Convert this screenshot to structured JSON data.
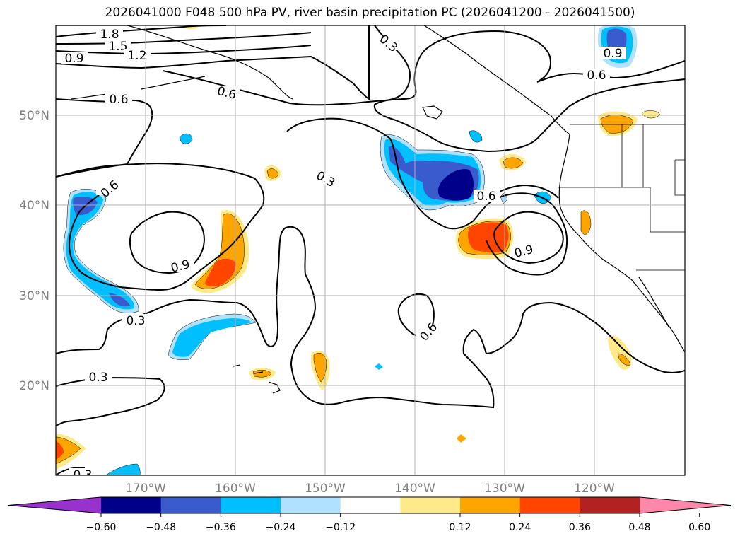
{
  "title": "2026041000 F048 500 hPa PV, river basin precipitation PC (2026041200 - 2026041500)",
  "map": {
    "projection": "PlateCarree",
    "lon_range": [
      -180,
      -110
    ],
    "lat_range": [
      10,
      60
    ],
    "lat_ticks": [
      "20°N",
      "30°N",
      "40°N",
      "50°N"
    ],
    "lon_ticks": [
      "170°W",
      "160°W",
      "150°W",
      "140°W",
      "130°W",
      "120°W"
    ],
    "grid": true
  },
  "pv_contour_labels": [
    "1.8",
    "1.5",
    "1.2",
    "0.9",
    "0.6",
    "0.6",
    "0.3",
    "0.6",
    "0.9",
    "0.3",
    "0.6",
    "0.9",
    "0.6",
    "0.3",
    "0.6",
    "0.3",
    "0.3",
    "0.9",
    "0.6"
  ],
  "colorbar": {
    "ticks": [
      "−0.60",
      "−0.48",
      "−0.36",
      "−0.24",
      "−0.12",
      "0.12",
      "0.24",
      "0.36",
      "0.48",
      "0.60"
    ],
    "colors": [
      "#9932cc",
      "#00008b",
      "#3a5bcd",
      "#00bfff",
      "#b0e2ff",
      "#ffffff",
      "#ffea8a",
      "#ffa500",
      "#ff4500",
      "#b22222",
      "#ff88aa"
    ]
  }
}
